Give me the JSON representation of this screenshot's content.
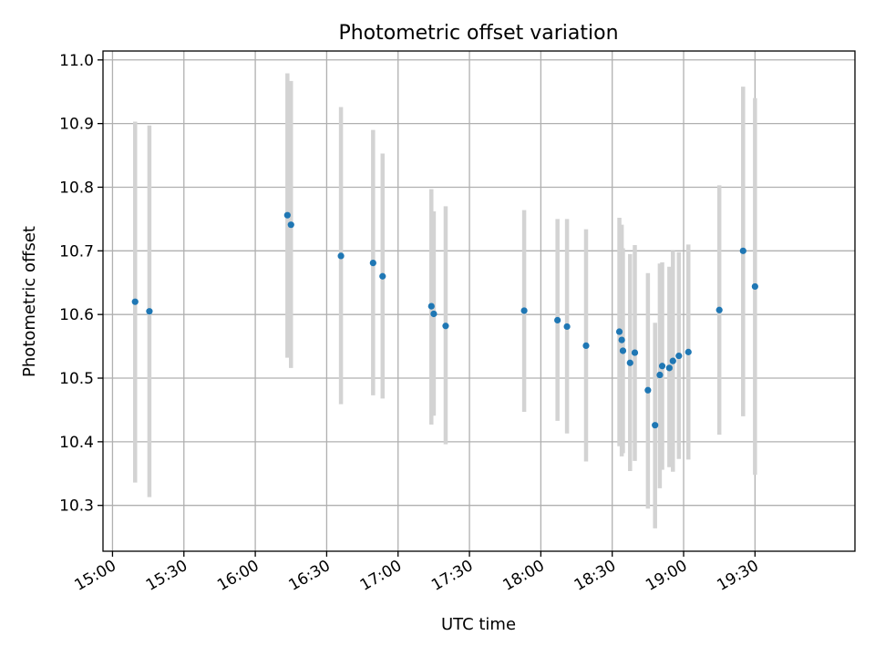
{
  "chart_data": {
    "type": "scatter",
    "title": "Photometric offset variation",
    "xlabel": "UTC time",
    "ylabel": "Photometric offset",
    "x_unit": "time",
    "xlim": [
      "14:56",
      "20:12"
    ],
    "ylim": [
      10.228,
      11.014
    ],
    "xticks": [
      "15:00",
      "15:30",
      "16:00",
      "16:30",
      "17:00",
      "17:30",
      "18:00",
      "18:30",
      "19:00",
      "19:30"
    ],
    "yticks": [
      10.3,
      10.4,
      10.5,
      10.6,
      10.7,
      10.8,
      10.9,
      11.0
    ],
    "ytick_labels": [
      "10.3",
      "10.4",
      "10.5",
      "10.6",
      "10.7",
      "10.8",
      "10.9",
      "11.0"
    ],
    "grid": true,
    "colors": {
      "point": "#1f77b4",
      "errorbar": "#d3d3d3",
      "grid": "#b0b0b0"
    },
    "points": [
      {
        "time": "15:09.5",
        "y": 10.62,
        "ylo": 10.336,
        "yhi": 10.903
      },
      {
        "time": "15:15.5",
        "y": 10.605,
        "ylo": 10.313,
        "yhi": 10.897
      },
      {
        "time": "16:13.5",
        "y": 10.756,
        "ylo": 10.532,
        "yhi": 10.979
      },
      {
        "time": "16:15",
        "y": 10.741,
        "ylo": 10.516,
        "yhi": 10.967
      },
      {
        "time": "16:36",
        "y": 10.692,
        "ylo": 10.459,
        "yhi": 10.926
      },
      {
        "time": "16:49.5",
        "y": 10.681,
        "ylo": 10.473,
        "yhi": 10.89
      },
      {
        "time": "16:53.5",
        "y": 10.66,
        "ylo": 10.468,
        "yhi": 10.853
      },
      {
        "time": "17:14",
        "y": 10.613,
        "ylo": 10.427,
        "yhi": 10.797
      },
      {
        "time": "17:15",
        "y": 10.601,
        "ylo": 10.441,
        "yhi": 10.762
      },
      {
        "time": "17:20",
        "y": 10.582,
        "ylo": 10.396,
        "yhi": 10.77
      },
      {
        "time": "17:53",
        "y": 10.606,
        "ylo": 10.447,
        "yhi": 10.764
      },
      {
        "time": "18:07",
        "y": 10.591,
        "ylo": 10.433,
        "yhi": 10.75
      },
      {
        "time": "18:11",
        "y": 10.581,
        "ylo": 10.413,
        "yhi": 10.75
      },
      {
        "time": "18:19",
        "y": 10.551,
        "ylo": 10.369,
        "yhi": 10.734
      },
      {
        "time": "18:33",
        "y": 10.573,
        "ylo": 10.393,
        "yhi": 10.752
      },
      {
        "time": "18:34",
        "y": 10.56,
        "ylo": 10.377,
        "yhi": 10.741
      },
      {
        "time": "18:34.5",
        "y": 10.543,
        "ylo": 10.382,
        "yhi": 10.704
      },
      {
        "time": "18:37.5",
        "y": 10.524,
        "ylo": 10.354,
        "yhi": 10.695
      },
      {
        "time": "18:39.5",
        "y": 10.54,
        "ylo": 10.37,
        "yhi": 10.709
      },
      {
        "time": "18:45",
        "y": 10.481,
        "ylo": 10.295,
        "yhi": 10.665
      },
      {
        "time": "18:48",
        "y": 10.426,
        "ylo": 10.264,
        "yhi": 10.587
      },
      {
        "time": "18:50",
        "y": 10.505,
        "ylo": 10.327,
        "yhi": 10.68
      },
      {
        "time": "18:51",
        "y": 10.519,
        "ylo": 10.356,
        "yhi": 10.682
      },
      {
        "time": "18:54",
        "y": 10.516,
        "ylo": 10.36,
        "yhi": 10.675
      },
      {
        "time": "18:55.5",
        "y": 10.527,
        "ylo": 10.353,
        "yhi": 10.7
      },
      {
        "time": "18:58",
        "y": 10.535,
        "ylo": 10.373,
        "yhi": 10.698
      },
      {
        "time": "19:02",
        "y": 10.541,
        "ylo": 10.372,
        "yhi": 10.71
      },
      {
        "time": "19:15",
        "y": 10.607,
        "ylo": 10.411,
        "yhi": 10.803
      },
      {
        "time": "19:25",
        "y": 10.7,
        "ylo": 10.44,
        "yhi": 10.958
      },
      {
        "time": "19:30",
        "y": 10.644,
        "ylo": 10.348,
        "yhi": 10.94
      }
    ]
  }
}
